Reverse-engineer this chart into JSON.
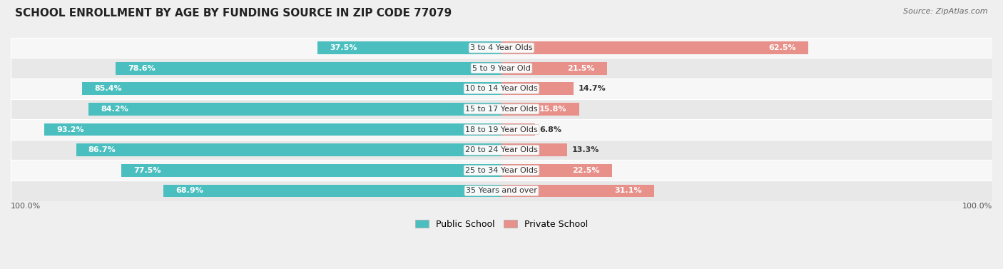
{
  "title": "SCHOOL ENROLLMENT BY AGE BY FUNDING SOURCE IN ZIP CODE 77079",
  "source": "Source: ZipAtlas.com",
  "categories": [
    "3 to 4 Year Olds",
    "5 to 9 Year Old",
    "10 to 14 Year Olds",
    "15 to 17 Year Olds",
    "18 to 19 Year Olds",
    "20 to 24 Year Olds",
    "25 to 34 Year Olds",
    "35 Years and over"
  ],
  "public_values": [
    37.5,
    78.6,
    85.4,
    84.2,
    93.2,
    86.7,
    77.5,
    68.9
  ],
  "private_values": [
    62.5,
    21.5,
    14.7,
    15.8,
    6.8,
    13.3,
    22.5,
    31.1
  ],
  "public_color": "#4BBFBF",
  "private_color": "#E8908A",
  "background_color": "#EFEFEF",
  "row_bg_light": "#F7F7F7",
  "row_bg_dark": "#E8E8E8",
  "title_fontsize": 11,
  "source_fontsize": 8,
  "label_fontsize": 8,
  "value_fontsize": 8,
  "legend_fontsize": 9,
  "axis_label_fontsize": 8
}
